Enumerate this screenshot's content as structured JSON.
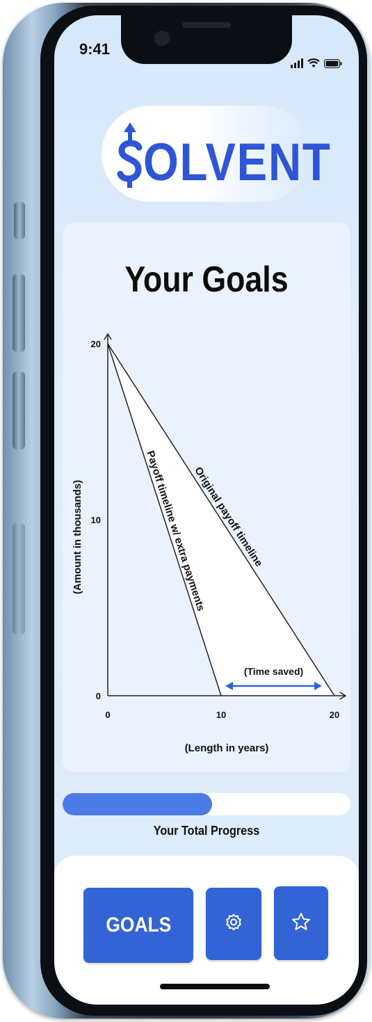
{
  "status_bar": {
    "time": "9:41"
  },
  "app": {
    "logo_text": "OLVENT",
    "logo_mark_icon": "dollar-arrow-icon",
    "brand_color": "#2e55d6"
  },
  "page_title": "Your Goals",
  "chart_data": {
    "type": "line",
    "ylabel": "(Amount in thousands)",
    "xlabel": "(Length in years)",
    "x_ticks": [
      "0",
      "10",
      "20"
    ],
    "y_ticks": [
      "0",
      "10",
      "20"
    ],
    "xlim": [
      0,
      20
    ],
    "ylim": [
      0,
      20
    ],
    "series": [
      {
        "name": "Original payoff timeline",
        "points": [
          [
            0,
            20
          ],
          [
            20,
            0
          ]
        ]
      },
      {
        "name": "Payoff timeline w/ extra payments",
        "points": [
          [
            0,
            20
          ],
          [
            10,
            0
          ]
        ]
      }
    ],
    "annotation": {
      "label": "(Time saved)",
      "from_x": 10,
      "to_x": 20
    }
  },
  "progress": {
    "label": "Your Total Progress",
    "fraction": 0.52,
    "fill_color": "#4d7be5"
  },
  "nav": {
    "goals_label": "GOALS",
    "settings_icon": "gear-icon",
    "favorites_icon": "star-icon",
    "button_color": "#3264d6"
  }
}
